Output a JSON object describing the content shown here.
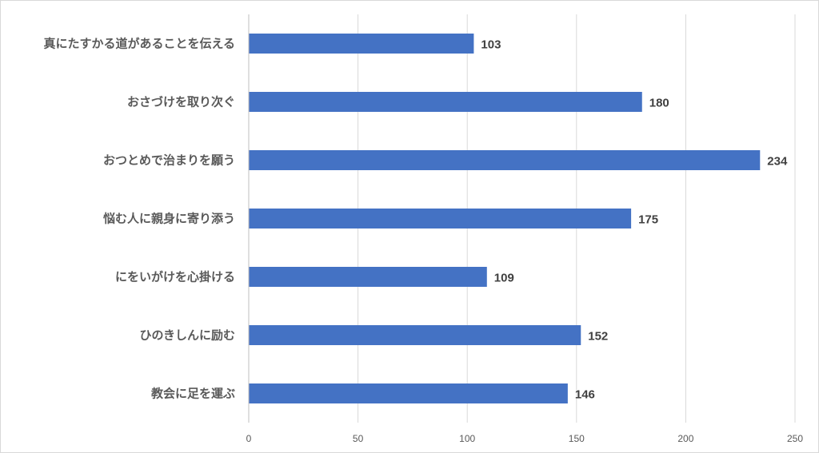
{
  "chart_data": {
    "type": "bar",
    "orientation": "horizontal",
    "categories": [
      "真にたすかる道があることを伝える",
      "おさづけを取り次ぐ",
      "おつとめで治まりを願う",
      "悩む人に親身に寄り添う",
      "にをいがけを心掛ける",
      "ひのきしんに励む",
      "教会に足を運ぶ"
    ],
    "values": [
      103,
      180,
      234,
      175,
      109,
      152,
      146
    ],
    "title": "",
    "xlabel": "",
    "ylabel": "",
    "xlim": [
      0,
      250
    ],
    "x_ticks": [
      0,
      50,
      100,
      150,
      200,
      250
    ],
    "grid": "vertical",
    "legend": "none",
    "bar_color": "#4472c4",
    "gridline_color": "#d9d9d9"
  }
}
